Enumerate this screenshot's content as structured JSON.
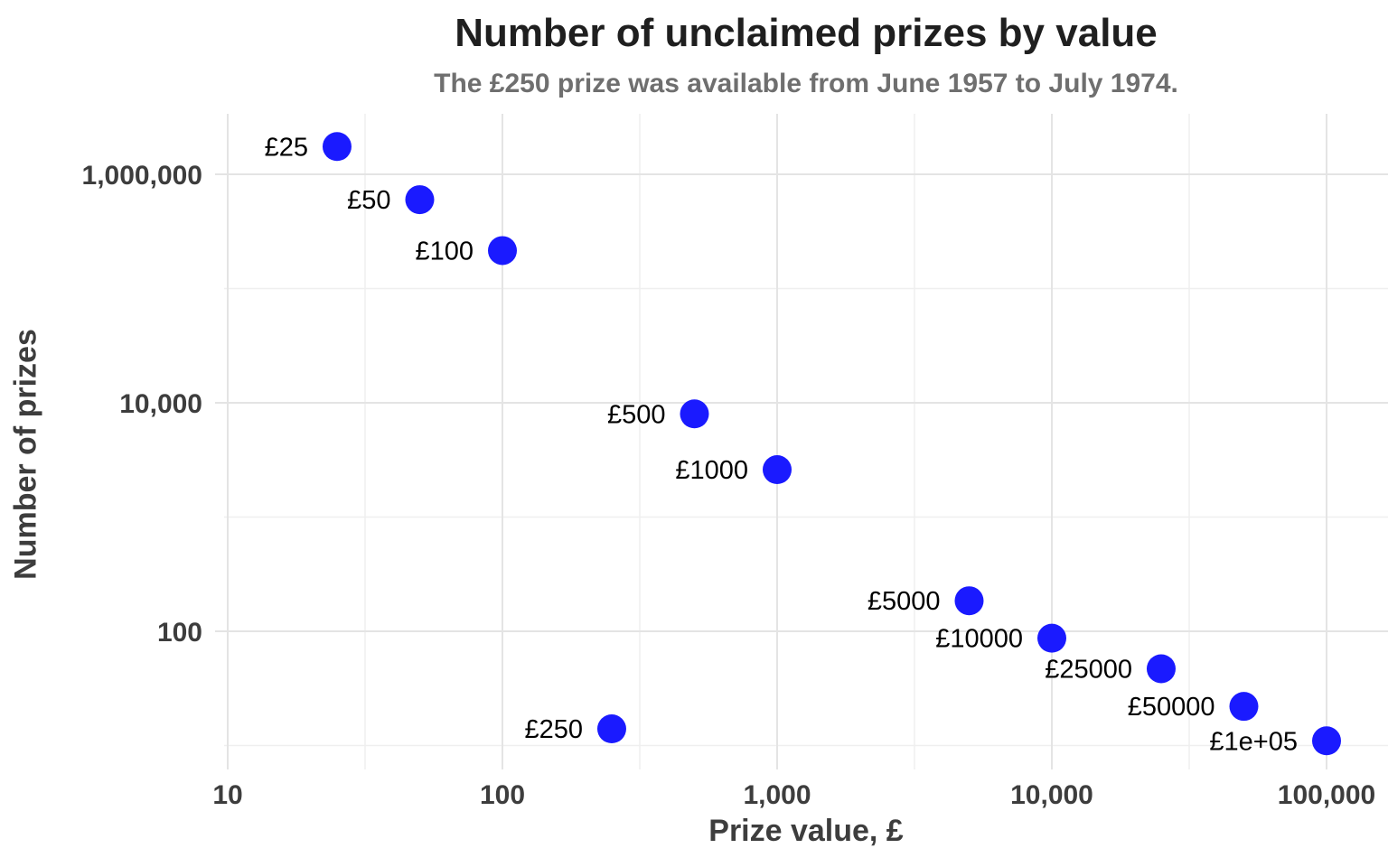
{
  "chart_data": {
    "type": "scatter",
    "title": "Number of unclaimed prizes by value",
    "subtitle": "The £250 prize was available from June 1957 to July 1974.",
    "xlabel": "Prize value, £",
    "ylabel": "Number of prizes",
    "x_scale": "log10",
    "y_scale": "log10",
    "grid": true,
    "legend": false,
    "xlim_log10": [
      0.987,
      5.224
    ],
    "ylim_log10": [
      0.79,
      6.53
    ],
    "x_ticks": {
      "values": [
        10,
        100,
        1000,
        10000,
        100000
      ],
      "labels": [
        "10",
        "100",
        "1,000",
        "10,000",
        "100,000"
      ]
    },
    "y_ticks": {
      "values": [
        100,
        10000,
        1000000
      ],
      "labels": [
        "100",
        "10,000",
        "1,000,000"
      ]
    },
    "x_minor_gridlines": [
      31.62,
      316.23,
      3162.28,
      31622.78
    ],
    "y_minor_gridlines": [
      10,
      1000,
      100000
    ],
    "points": [
      {
        "label": "£25",
        "x": 25,
        "y": 1750000
      },
      {
        "label": "£50",
        "x": 50,
        "y": 600000
      },
      {
        "label": "£100",
        "x": 100,
        "y": 215000
      },
      {
        "label": "£250",
        "x": 250,
        "y": 14
      },
      {
        "label": "£500",
        "x": 500,
        "y": 8000
      },
      {
        "label": "£1000",
        "x": 1000,
        "y": 2600
      },
      {
        "label": "£5000",
        "x": 5000,
        "y": 185
      },
      {
        "label": "£10000",
        "x": 10000,
        "y": 87
      },
      {
        "label": "£25000",
        "x": 25000,
        "y": 47
      },
      {
        "label": "£50000",
        "x": 50000,
        "y": 22
      },
      {
        "label": "£1e+05",
        "x": 100000,
        "y": 11
      }
    ],
    "colors": {
      "dot": "#1a1aff",
      "title": "#1f1f1f",
      "subtitle": "#6f6f6f",
      "axis_text": "#3d3d3d",
      "point_label": "#000000",
      "grid_major": "#e4e4e4",
      "grid_minor": "#efefef",
      "background": "#ffffff"
    }
  }
}
